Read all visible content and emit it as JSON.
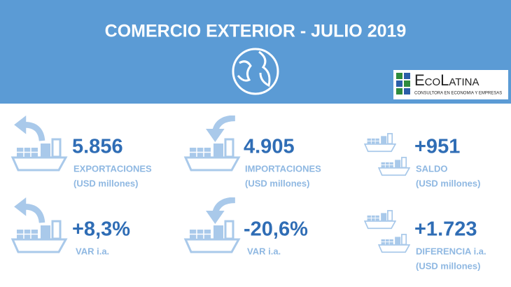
{
  "header": {
    "title": "COMERCIO EXTERIOR - JULIO 2019",
    "logo": {
      "name": "EcoLatina",
      "tagline": "CONSULTORA EN ECONOMIA Y EMPRESAS"
    }
  },
  "tiles": [
    {
      "value": "5.856",
      "label": "EXPORTACIONES",
      "unit": "(USD millones)"
    },
    {
      "value": "4.905",
      "label": "IMPORTACIONES",
      "unit": "(USD millones)"
    },
    {
      "value": "+951",
      "label": "SALDO",
      "unit": "(USD millones)"
    },
    {
      "value": "+8,3%",
      "label": "VAR i.a."
    },
    {
      "value": "-20,6%",
      "label": "VAR i.a."
    },
    {
      "value": "+1.723",
      "label": "DIFERENCIA i.a.",
      "unit": "(USD millones)"
    }
  ]
}
